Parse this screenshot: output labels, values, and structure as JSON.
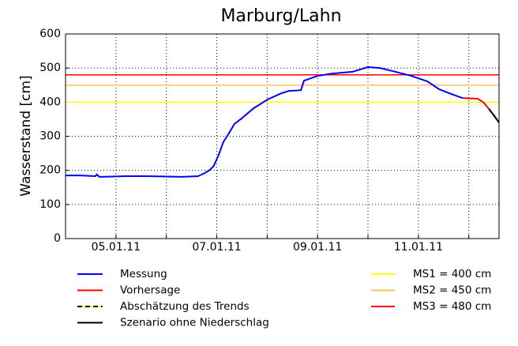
{
  "chart_data": {
    "type": "line",
    "title": "Marburg/Lahn",
    "ylabel": "Wasserstand [cm]",
    "xlim": [
      4.0,
      12.6
    ],
    "ylim": [
      0,
      600
    ],
    "xticks": [
      {
        "value": 5,
        "label": "05.01.11"
      },
      {
        "value": 6,
        "label": null
      },
      {
        "value": 7,
        "label": "07.01.11"
      },
      {
        "value": 8,
        "label": null
      },
      {
        "value": 9,
        "label": "09.01.11"
      },
      {
        "value": 10,
        "label": null
      },
      {
        "value": 11,
        "label": "11.01.11"
      },
      {
        "value": 12,
        "label": null
      }
    ],
    "yticks": [
      0,
      100,
      200,
      300,
      400,
      500,
      600
    ],
    "grid": true,
    "thresholds": [
      {
        "name": "MS1 = 400 cm",
        "value": 400,
        "color": "#ffff00"
      },
      {
        "name": "MS2 = 450 cm",
        "value": 450,
        "color": "#ffc060"
      },
      {
        "name": "MS3 = 480 cm",
        "value": 480,
        "color": "#ff0000"
      }
    ],
    "series": [
      {
        "name": "Messung",
        "color": "#0000ff",
        "x": [
          4.0,
          4.28,
          4.59,
          4.62,
          4.67,
          5.22,
          5.61,
          6.32,
          6.63,
          6.76,
          6.85,
          6.94,
          7.04,
          7.13,
          7.23,
          7.35,
          7.49,
          7.73,
          8.01,
          8.28,
          8.43,
          8.67,
          8.73,
          9.0,
          9.29,
          9.69,
          10.0,
          10.24,
          10.55,
          10.86,
          11.18,
          11.41,
          11.65,
          11.88
        ],
        "values": [
          185,
          185,
          183,
          188,
          181,
          183,
          183,
          181,
          183,
          192,
          200,
          213,
          246,
          283,
          306,
          336,
          352,
          382,
          408,
          426,
          433,
          435,
          463,
          477,
          484,
          489,
          503,
          500,
          489,
          477,
          461,
          438,
          424,
          412
        ]
      },
      {
        "name": "Vorhersage",
        "color": "#ff0000",
        "x": [
          11.88,
          12.18,
          12.3,
          12.4
        ],
        "values": [
          412,
          410,
          398,
          380
        ]
      },
      {
        "name": "Abschätzung des Trends",
        "color": "#000000",
        "dash": "6,4",
        "underlay": "#ffff00",
        "x": [
          12.4,
          12.5,
          12.6
        ],
        "values": [
          380,
          361,
          340
        ]
      },
      {
        "name": "Szenario ohne Niederschlag",
        "color": "#000000",
        "x": [
          12.4,
          12.5,
          12.6
        ],
        "values": [
          380,
          361,
          340
        ]
      }
    ]
  }
}
